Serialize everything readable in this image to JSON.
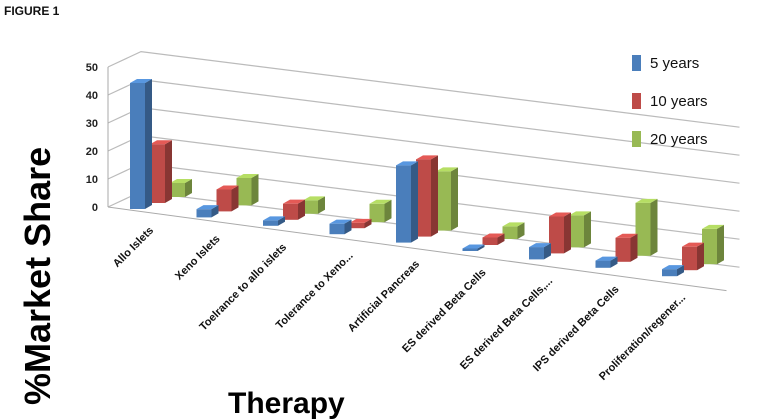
{
  "figure_label": "FIGURE 1",
  "chart_data": {
    "type": "bar",
    "style": "3d-clustered",
    "xlabel": "Therapy",
    "ylabel": "%Market Share",
    "ylim": [
      0,
      50
    ],
    "yticks": [
      0,
      10,
      20,
      30,
      40,
      50
    ],
    "grid": true,
    "legend_placement": "top-right",
    "categories": [
      "Allo Islets",
      "Xeno Islets",
      "Toelrance to allo islets",
      "Tolerance to Xeno...",
      "Artificial Pancreas",
      "ES derived Beta Cells",
      "ES derived Beta Cells,...",
      "IPS derived Beta Cells",
      "Proliferation/regener..."
    ],
    "series": [
      {
        "name": "5 years",
        "color": "#4a7ebb",
        "values": [
          45,
          3,
          2,
          4,
          30,
          1,
          5,
          3,
          3
        ]
      },
      {
        "name": "10 years",
        "color": "#be4b48",
        "values": [
          21,
          8,
          6,
          2,
          30,
          3,
          15,
          10,
          10
        ]
      },
      {
        "name": "20 years",
        "color": "#98b954",
        "values": [
          5,
          10,
          5,
          7,
          23,
          5,
          13,
          22,
          15
        ]
      }
    ]
  }
}
